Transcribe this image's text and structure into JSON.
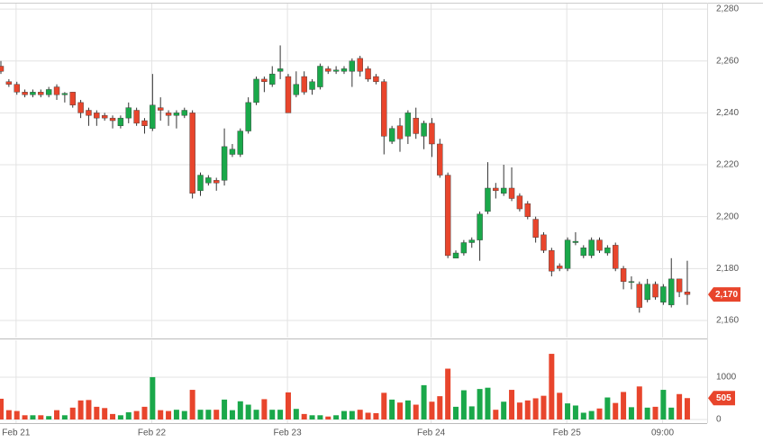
{
  "chart_data": {
    "type": "candlestick",
    "categories": [
      null,
      "Feb 21",
      null,
      null,
      null,
      null,
      null,
      null,
      null,
      null,
      null,
      null,
      null,
      null,
      null,
      null,
      null,
      null,
      "Feb 22",
      null,
      null,
      null,
      null,
      null,
      null,
      null,
      null,
      null,
      null,
      null,
      null,
      null,
      null,
      null,
      null,
      "Feb 23",
      null,
      null,
      null,
      null,
      null,
      null,
      null,
      null,
      null,
      null,
      null,
      null,
      null,
      null,
      null,
      null,
      null,
      "Feb 24",
      null,
      null,
      null,
      null,
      null,
      null,
      null,
      null,
      null,
      null,
      null,
      null,
      null,
      null,
      null,
      null,
      "Feb 25",
      null,
      null,
      null,
      null,
      null,
      null,
      null,
      null,
      null,
      null,
      null,
      "09:00",
      null,
      null,
      null,
      null
    ],
    "open": [
      2258,
      2252,
      2251,
      2248,
      2247,
      2248,
      2247,
      2250,
      2247,
      2248,
      2244,
      2241,
      2240,
      2239,
      2238,
      2235,
      2238,
      2241,
      2237,
      2234,
      2242,
      2240,
      2239,
      2239,
      2240,
      2210,
      2213,
      2214,
      2214,
      2224,
      2224,
      2233,
      2244,
      2253,
      2251,
      2256,
      2254,
      2247,
      2254,
      2249,
      2250,
      2257,
      2256,
      2256,
      2256,
      2261,
      2257,
      2254,
      2252,
      2229,
      2235,
      2231,
      2238,
      2231,
      2236,
      2228,
      2216,
      2184,
      2186,
      2190,
      2191,
      2202,
      2211,
      2209,
      2211,
      2208,
      2205,
      2199,
      2193,
      2187,
      2181,
      2180,
      2190,
      2185,
      2185,
      2191,
      2186,
      2189,
      2180,
      2175,
      2174,
      2168,
      2174,
      2167,
      2166,
      2176,
      2171
    ],
    "high": [
      2260,
      2253,
      2252,
      2249,
      2249,
      2249,
      2250,
      2251,
      2248,
      2248,
      2245,
      2242,
      2241,
      2240,
      2239,
      2239,
      2244,
      2242,
      2238,
      2255,
      2246,
      2241,
      2241,
      2242,
      2241,
      2217,
      2216,
      2215,
      2234,
      2228,
      2234,
      2246,
      2254,
      2254,
      2258,
      2266,
      2255,
      2256,
      2256,
      2253,
      2259,
      2258,
      2258,
      2258,
      2261,
      2262,
      2258,
      2255,
      2253,
      2235,
      2238,
      2241,
      2242,
      2237,
      2238,
      2230,
      2217,
      2187,
      2191,
      2192,
      2202,
      2221,
      2213,
      2220,
      2219,
      2209,
      2206,
      2200,
      2194,
      2188,
      2182,
      2192,
      2194,
      2189,
      2192,
      2192,
      2189,
      2190,
      2181,
      2177,
      2175,
      2176,
      2175,
      2174,
      2184,
      2176,
      2183
    ],
    "low": [
      2255,
      2250,
      2247,
      2246,
      2246,
      2246,
      2246,
      2245,
      2244,
      2242,
      2238,
      2235,
      2235,
      2237,
      2234,
      2234,
      2236,
      2235,
      2232,
      2233,
      2237,
      2235,
      2234,
      2238,
      2207,
      2208,
      2212,
      2210,
      2212,
      2223,
      2223,
      2232,
      2243,
      2248,
      2250,
      2253,
      2240,
      2246,
      2247,
      2247,
      2249,
      2255,
      2255,
      2255,
      2250,
      2254,
      2252,
      2251,
      2224,
      2228,
      2225,
      2228,
      2230,
      2226,
      2223,
      2215,
      2184,
      2184,
      2185,
      2188,
      2183,
      2201,
      2207,
      2208,
      2206,
      2202,
      2199,
      2190,
      2186,
      2177,
      2179,
      2179,
      2189,
      2184,
      2184,
      2186,
      2185,
      2179,
      2172,
      2172,
      2163,
      2167,
      2168,
      2166,
      2165,
      2169,
      2166
    ],
    "close": [
      2256,
      2251,
      2248,
      2247,
      2248,
      2247,
      2249,
      2247,
      2247.5,
      2243,
      2240,
      2239,
      2238,
      2238,
      2237,
      2238,
      2242,
      2236,
      2235,
      2243,
      2241,
      2239,
      2240,
      2241,
      2209,
      2216,
      2215,
      2213,
      2227,
      2226,
      2233,
      2244,
      2253,
      2252,
      2255,
      2257,
      2240,
      2251,
      2248,
      2252,
      2258,
      2256,
      2256.5,
      2257,
      2260,
      2256,
      2253,
      2252,
      2231,
      2234,
      2230,
      2240,
      2232,
      2236,
      2228,
      2216,
      2185,
      2186,
      2190,
      2191,
      2201,
      2211,
      2210,
      2211,
      2207,
      2203,
      2200,
      2192,
      2187,
      2179,
      2180,
      2191,
      2190.5,
      2188,
      2191,
      2187,
      2188,
      2180,
      2175,
      2175,
      2165,
      2174,
      2169,
      2173,
      2176,
      2171,
      2170
    ],
    "volume": [
      490,
      220,
      200,
      100,
      100,
      100,
      80,
      220,
      100,
      280,
      450,
      460,
      300,
      270,
      130,
      100,
      170,
      200,
      300,
      1000,
      220,
      200,
      230,
      200,
      700,
      230,
      230,
      230,
      470,
      220,
      430,
      350,
      230,
      480,
      230,
      230,
      640,
      250,
      130,
      100,
      100,
      70,
      100,
      200,
      200,
      230,
      160,
      150,
      630,
      470,
      400,
      450,
      350,
      810,
      420,
      550,
      1200,
      300,
      690,
      310,
      720,
      750,
      230,
      420,
      700,
      400,
      450,
      500,
      560,
      1550,
      630,
      380,
      330,
      160,
      200,
      260,
      520,
      390,
      650,
      290,
      780,
      280,
      300,
      700,
      280,
      600,
      505
    ],
    "last_close_label": "2,170",
    "last_volume_label": "505",
    "up_color": "#1aa84a",
    "down_color": "#e8452c",
    "ylim": [
      2153.4,
      2283.5
    ],
    "yticks": [
      {
        "value": 2160,
        "label": "2,160"
      },
      {
        "value": 2180,
        "label": "2,180"
      },
      {
        "value": 2200,
        "label": "2,200"
      },
      {
        "value": 2220,
        "label": "2,220"
      },
      {
        "value": 2240,
        "label": "2,240"
      },
      {
        "value": 2260,
        "label": "2,260"
      },
      {
        "value": 2280,
        "label": "2,280"
      }
    ],
    "volume_lim": [
      0,
      1870
    ],
    "volume_ticks": [
      0,
      1000
    ],
    "grid": true
  }
}
